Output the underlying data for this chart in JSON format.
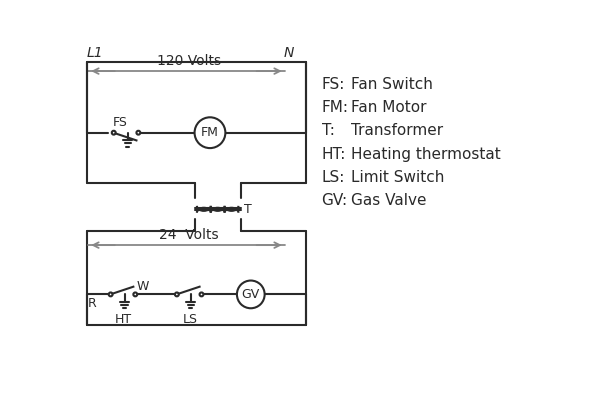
{
  "background_color": "#ffffff",
  "line_color": "#2a2a2a",
  "line_width": 1.5,
  "arrow_color": "#888888",
  "legend": [
    [
      "FS:",
      "Fan Switch"
    ],
    [
      "FM:",
      "Fan Motor"
    ],
    [
      "T:",
      "Transformer"
    ],
    [
      "HT:",
      "Heating thermostat"
    ],
    [
      "LS:",
      "Limit Switch"
    ],
    [
      "GV:",
      "Gas Valve"
    ]
  ],
  "label_L1": "L1",
  "label_N": "N",
  "label_120V": "120 Volts",
  "label_24V": "24  Volts",
  "label_T": "T",
  "label_FS": "FS",
  "label_FM": "FM",
  "label_R": "R",
  "label_W": "W",
  "label_HT": "HT",
  "label_LS": "LS",
  "label_GV": "GV"
}
